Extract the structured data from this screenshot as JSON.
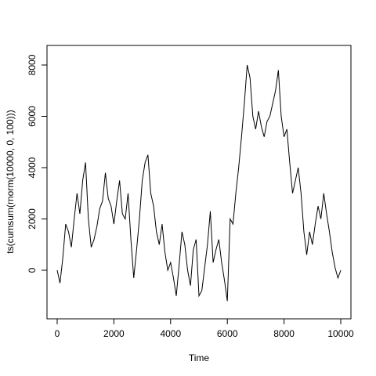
{
  "chart_data": {
    "type": "line",
    "xlabel": "Time",
    "ylabel": "ts(cumsum(rnorm(10000, 0, 100)))",
    "x": [
      0,
      100,
      200,
      300,
      400,
      500,
      600,
      700,
      800,
      900,
      1000,
      1100,
      1200,
      1300,
      1400,
      1500,
      1600,
      1700,
      1800,
      1900,
      2000,
      2100,
      2200,
      2300,
      2400,
      2500,
      2600,
      2700,
      2800,
      2900,
      3000,
      3100,
      3200,
      3300,
      3400,
      3500,
      3600,
      3700,
      3800,
      3900,
      4000,
      4100,
      4200,
      4300,
      4400,
      4500,
      4600,
      4700,
      4800,
      4900,
      5000,
      5100,
      5200,
      5300,
      5400,
      5500,
      5600,
      5700,
      5800,
      5900,
      6000,
      6100,
      6200,
      6300,
      6400,
      6500,
      6600,
      6700,
      6800,
      6900,
      7000,
      7100,
      7200,
      7300,
      7400,
      7500,
      7600,
      7700,
      7800,
      7900,
      8000,
      8100,
      8200,
      8300,
      8400,
      8500,
      8600,
      8700,
      8800,
      8900,
      9000,
      9100,
      9200,
      9300,
      9400,
      9500,
      9600,
      9700,
      9800,
      9900,
      10000
    ],
    "series": [
      {
        "name": "ts",
        "color": "#000000",
        "values": [
          0,
          -500,
          500,
          1800,
          1500,
          900,
          2000,
          3000,
          2200,
          3500,
          4200,
          2000,
          900,
          1200,
          1700,
          2400,
          2700,
          3800,
          2800,
          2500,
          1800,
          2700,
          3500,
          2200,
          2000,
          3000,
          1200,
          -300,
          800,
          2000,
          3500,
          4200,
          4500,
          3000,
          2500,
          1500,
          1000,
          1800,
          700,
          0,
          300,
          -300,
          -1000,
          200,
          1500,
          1000,
          0,
          -600,
          800,
          1200,
          -1000,
          -800,
          100,
          1000,
          2300,
          300,
          800,
          1200,
          300,
          -400,
          -1200,
          2000,
          1800,
          3000,
          4000,
          5200,
          6500,
          8000,
          7500,
          6000,
          5500,
          6200,
          5600,
          5200,
          5800,
          6000,
          6500,
          7000,
          7800,
          6000,
          5200,
          5500,
          4200,
          3000,
          3500,
          4000,
          3000,
          1500,
          600,
          1500,
          1000,
          1800,
          2500,
          2000,
          3000,
          2200,
          1500,
          700,
          100,
          -300,
          0
        ]
      }
    ],
    "xlim": [
      -359,
      10359
    ],
    "ylim": [
      -1893,
      8763
    ],
    "xticks": [
      0,
      2000,
      4000,
      6000,
      8000,
      10000
    ],
    "yticks": [
      0,
      2000,
      4000,
      6000,
      8000
    ]
  }
}
